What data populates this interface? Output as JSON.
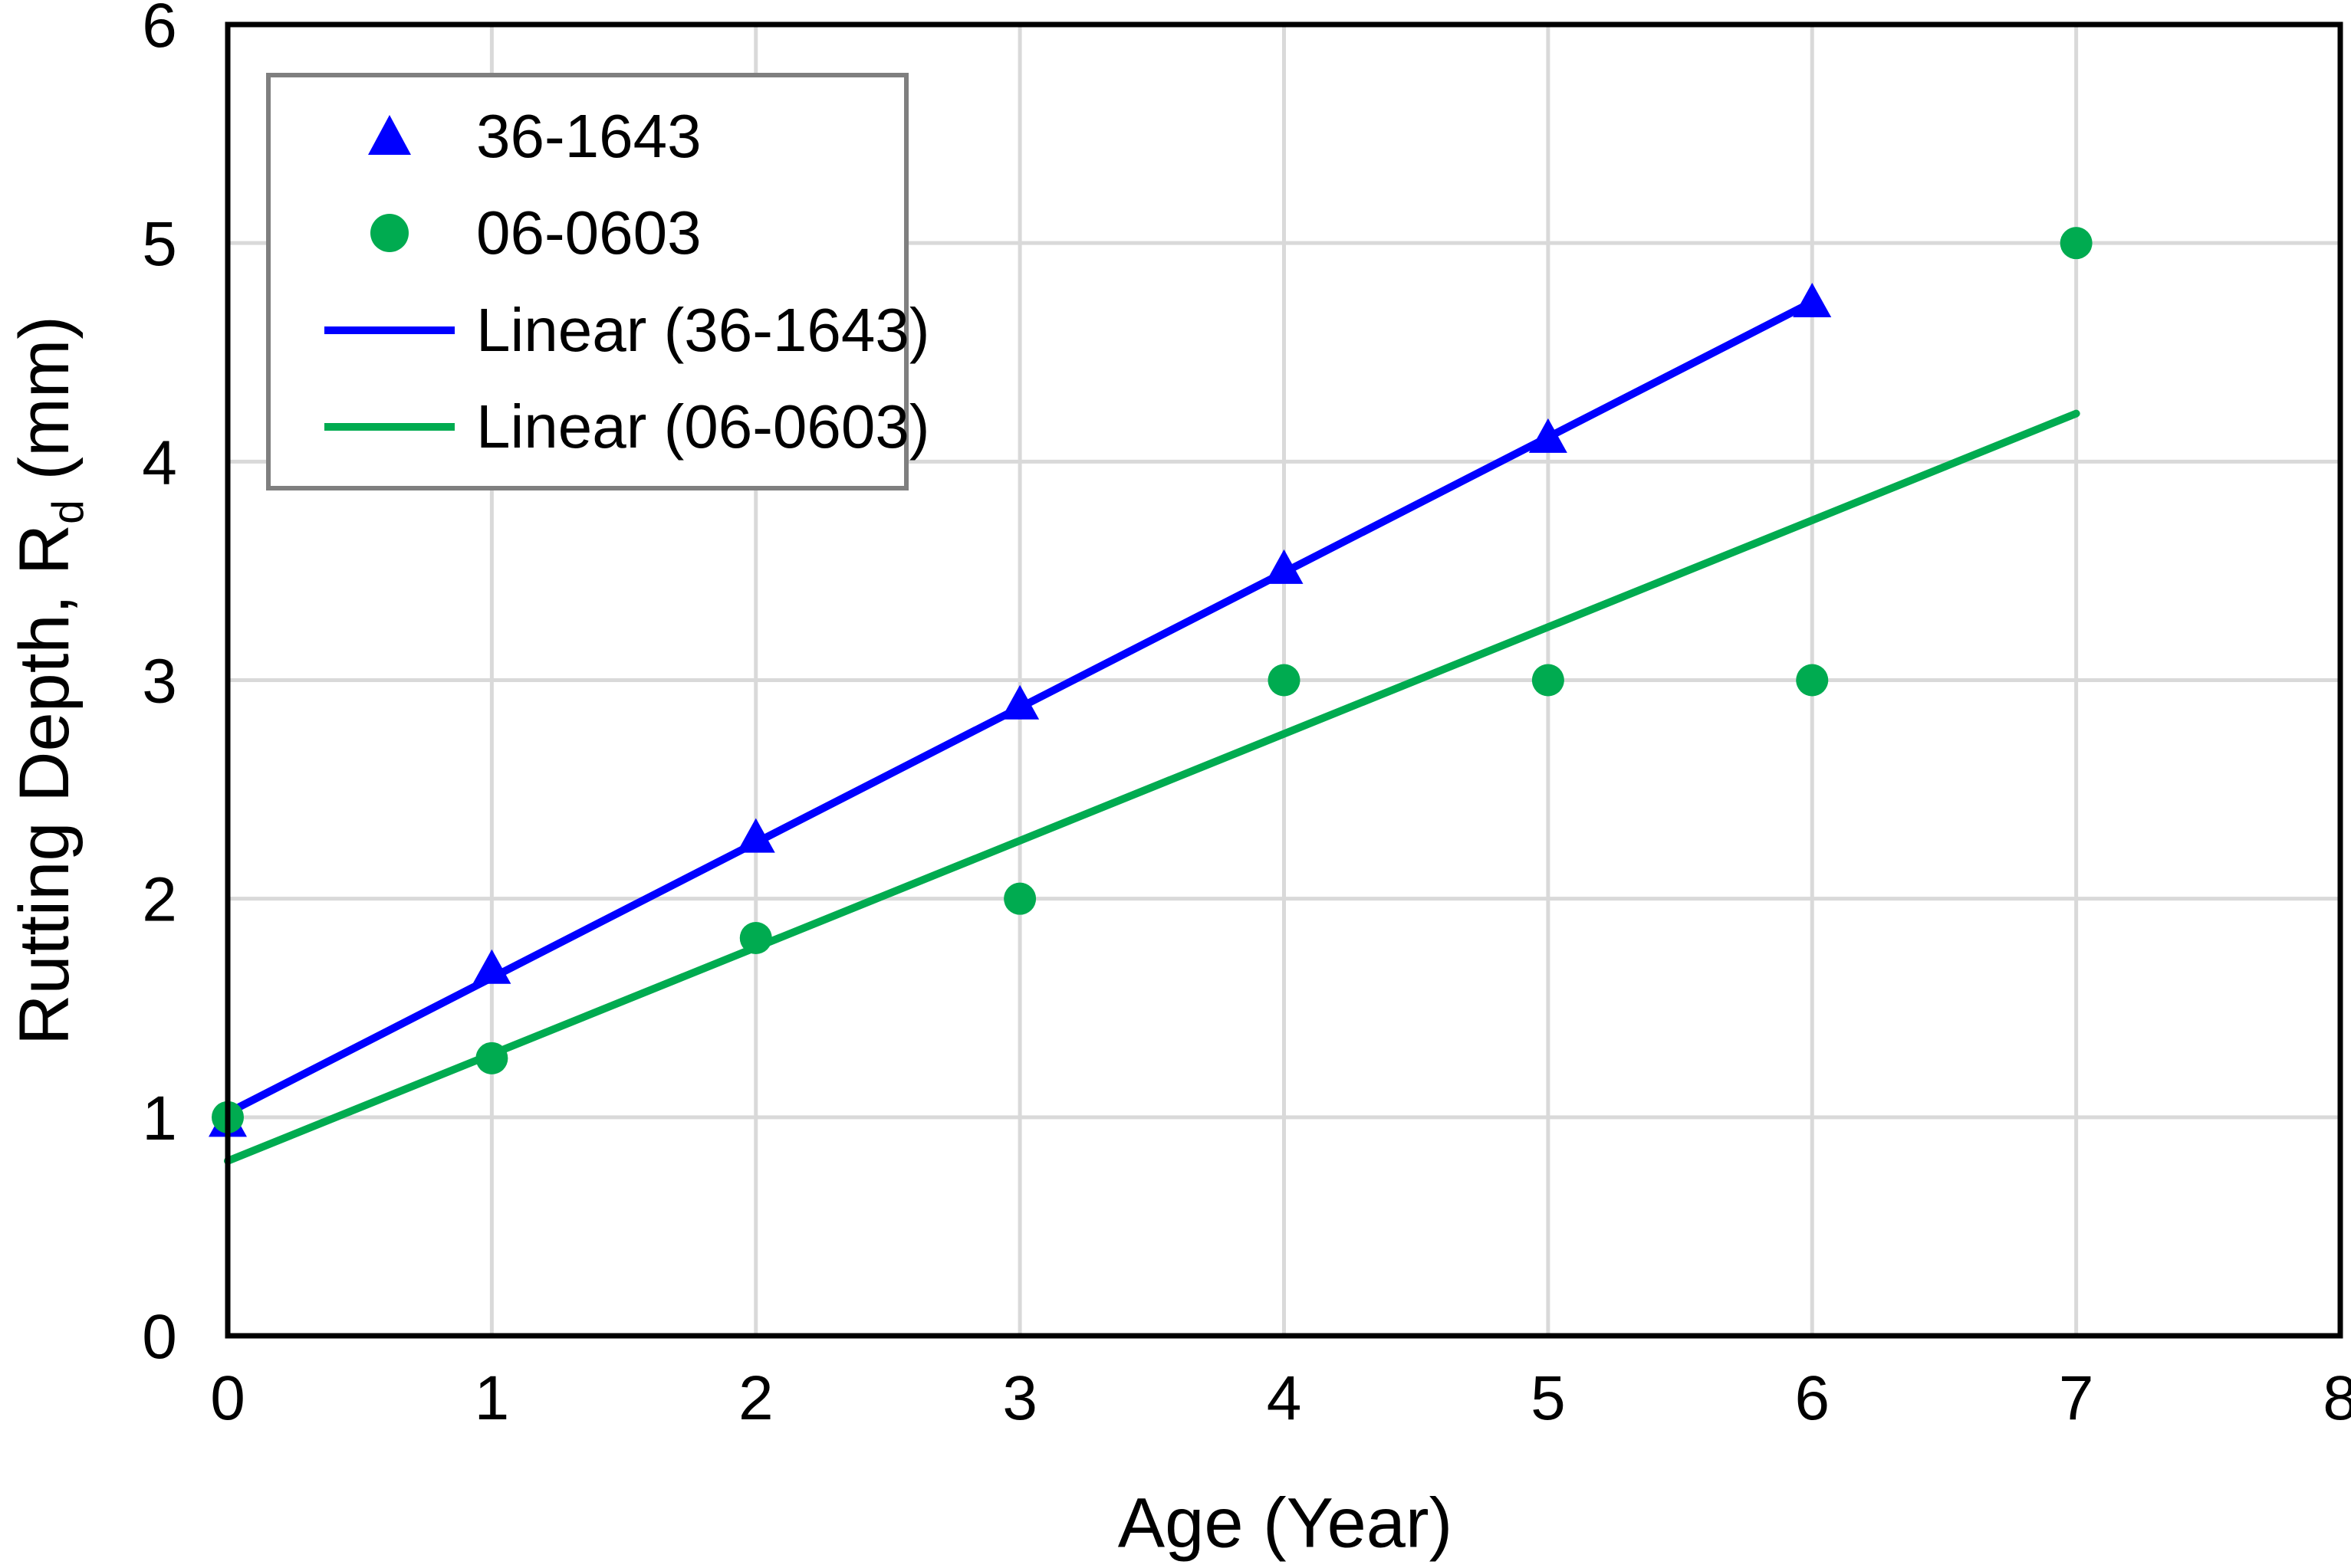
{
  "chart_data": {
    "type": "scatter",
    "title": "",
    "xlabel": "Age (Year)",
    "ylabel": {
      "main": "Rutting Depth, R",
      "sub": "d",
      "unit": " (mm)"
    },
    "xlim": [
      0,
      8
    ],
    "ylim": [
      0,
      6
    ],
    "xticks": [
      "0",
      "1",
      "2",
      "3",
      "4",
      "5",
      "6",
      "7",
      "8"
    ],
    "yticks": [
      "0",
      "1",
      "2",
      "3",
      "4",
      "5",
      "6"
    ],
    "grid": true,
    "legend_position": "top-left",
    "series": [
      {
        "name": "36-1643",
        "kind": "scatter",
        "marker": "triangle",
        "color": "#0000FF",
        "points": [
          [
            0,
            0.97
          ],
          [
            1,
            1.67
          ],
          [
            2,
            2.27
          ],
          [
            3,
            2.88
          ],
          [
            4,
            3.5
          ],
          [
            5,
            4.1
          ],
          [
            6,
            4.72
          ]
        ]
      },
      {
        "name": "06-0603",
        "kind": "scatter",
        "marker": "circle",
        "color": "#00AB50",
        "points": [
          [
            0,
            1.0
          ],
          [
            1,
            1.27
          ],
          [
            2,
            1.82
          ],
          [
            3,
            2.0
          ],
          [
            4,
            3.0
          ],
          [
            5,
            3.0
          ],
          [
            6,
            3.0
          ],
          [
            7,
            5.0
          ]
        ]
      },
      {
        "name": "Linear (36-1643)",
        "kind": "line",
        "color": "#0000FF",
        "points": [
          [
            0,
            1.02
          ],
          [
            6,
            4.73
          ]
        ]
      },
      {
        "name": "Linear (06-0603)",
        "kind": "line",
        "color": "#00AB50",
        "points": [
          [
            0,
            0.8
          ],
          [
            7,
            4.22
          ]
        ]
      }
    ],
    "colors": {
      "background": "#FFFFFF",
      "gridline": "#D9D9D9",
      "axis_border": "#000000",
      "tick_text": "#000000",
      "legend_border": "#7F7F7F"
    }
  }
}
